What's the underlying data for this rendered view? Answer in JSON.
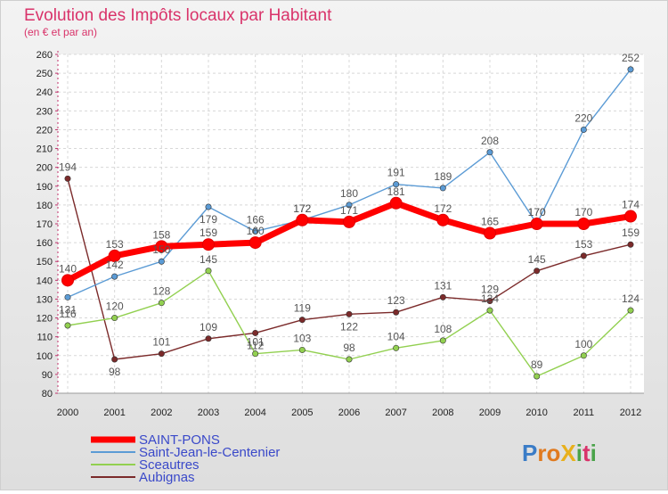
{
  "chart_data": {
    "type": "line",
    "title": "Evolution des Impôts locaux par Habitant",
    "subtitle": "(en € et par an)",
    "xlabel": "",
    "ylabel": "",
    "x": [
      "2000",
      "2001",
      "2002",
      "2003",
      "2004",
      "2005",
      "2006",
      "2007",
      "2008",
      "2009",
      "2010",
      "2011",
      "2012"
    ],
    "ylim": [
      80,
      260
    ],
    "ytick_step": 10,
    "grid": true,
    "legend_position": "bottom-left",
    "series": [
      {
        "name": "SAINT-PONS",
        "color": "#ff0000",
        "values": [
          140,
          153,
          158,
          159,
          160,
          172,
          171,
          181,
          172,
          165,
          170,
          170,
          174
        ]
      },
      {
        "name": "Saint-Jean-le-Centenier",
        "color": "#5b9bd5",
        "values": [
          131,
          142,
          150,
          179,
          166,
          172,
          180,
          191,
          189,
          208,
          170,
          220,
          252
        ]
      },
      {
        "name": "Sceautres",
        "color": "#92d050",
        "values": [
          116,
          120,
          128,
          145,
          101,
          103,
          98,
          104,
          108,
          124,
          89,
          100,
          124
        ]
      },
      {
        "name": "Aubignas",
        "color": "#7b2a2a",
        "values": [
          194,
          98,
          101,
          109,
          112,
          119,
          122,
          123,
          131,
          129,
          145,
          153,
          159
        ]
      }
    ]
  },
  "branding": {
    "logo_text": "ProXiti"
  }
}
